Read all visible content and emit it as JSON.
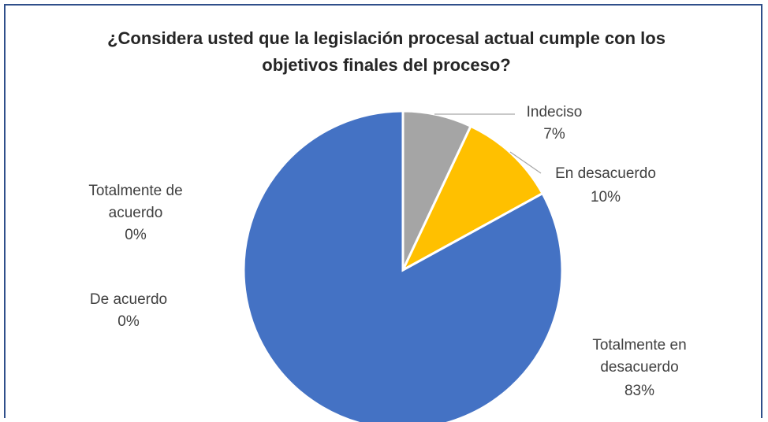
{
  "chart_data": {
    "type": "pie",
    "title_lines": [
      "¿Considera usted que la legislación procesal actual cumple con los",
      "objetivos finales del proceso?"
    ],
    "slices": [
      {
        "name_lines": [
          "Indeciso"
        ],
        "value_label": "7%",
        "value": 7,
        "color": "#a5a5a5"
      },
      {
        "name_lines": [
          "En desacuerdo"
        ],
        "value_label": "10%",
        "value": 10,
        "color": "#ffc000"
      },
      {
        "name_lines": [
          "Totalmente en",
          "desacuerdo"
        ],
        "value_label": "83%",
        "value": 83,
        "color": "#4472c4"
      },
      {
        "name_lines": [
          "De acuerdo"
        ],
        "value_label": "0%",
        "value": 0,
        "color": "#ed7d31"
      },
      {
        "name_lines": [
          "Totalmente de",
          "acuerdo"
        ],
        "value_label": "0%",
        "value": 0,
        "color": "#5b9bd5"
      }
    ]
  }
}
